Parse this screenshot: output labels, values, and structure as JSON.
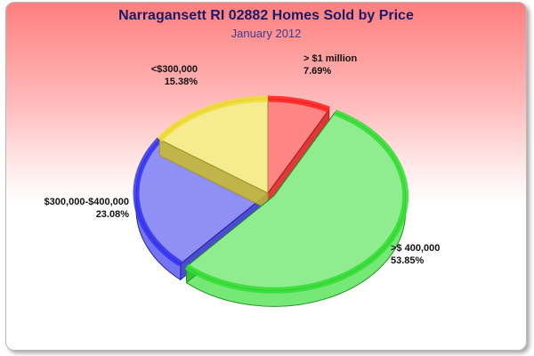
{
  "chart_data": {
    "type": "pie",
    "title": "Narragansett RI 02882 Homes Sold by Price",
    "subtitle": "January 2012",
    "slices": [
      {
        "label": "> $1 million",
        "value": 7.69,
        "value_label": "7.69%",
        "color": "#ff2020"
      },
      {
        "label": ">$ 400,000",
        "value": 53.85,
        "value_label": "53.85%",
        "color": "#33dd33"
      },
      {
        "label": "$300,000-$400,000",
        "value": 23.08,
        "value_label": "23.08%",
        "color": "#3333ee"
      },
      {
        "label": "<$300,000",
        "value": 15.38,
        "value_label": "15.38%",
        "color": "#eedd33"
      }
    ],
    "start_angle_deg": 0,
    "direction": "clockwise",
    "exploded_slice": ">$ 400,000",
    "style": "3d"
  }
}
